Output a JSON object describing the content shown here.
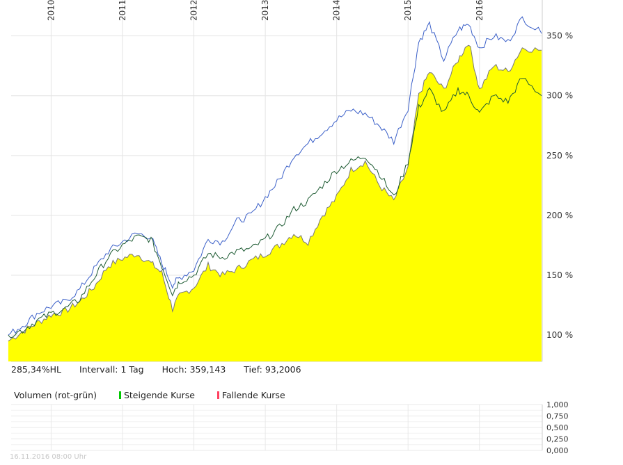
{
  "chart_data": {
    "type": "line",
    "x_axis": {
      "labels": [
        "2010",
        "2011",
        "2012",
        "2013",
        "2014",
        "2015",
        "2016"
      ]
    },
    "y_axis": {
      "ticks": [
        "350 %",
        "300 %",
        "250 %",
        "200 %",
        "150 %",
        "100 %"
      ],
      "ticks_values": [
        350,
        300,
        250,
        200,
        150,
        100
      ],
      "range": [
        78,
        380
      ]
    },
    "series": [
      {
        "color": "#3a5fc8",
        "x": [
          2009.4,
          2009.6,
          2009.8,
          2010.0,
          2010.2,
          2010.4,
          2010.6,
          2010.8,
          2011.0,
          2011.2,
          2011.4,
          2011.55,
          2011.7,
          2011.8,
          2012.0,
          2012.2,
          2012.4,
          2012.6,
          2012.8,
          2013.0,
          2013.2,
          2013.4,
          2013.6,
          2013.8,
          2014.0,
          2014.2,
          2014.4,
          2014.6,
          2014.8,
          2015.0,
          2015.15,
          2015.3,
          2015.5,
          2015.7,
          2015.85,
          2016.0,
          2016.2,
          2016.4,
          2016.6,
          2016.87
        ],
        "values": [
          100,
          108,
          118,
          124,
          128,
          138,
          155,
          170,
          178,
          185,
          182,
          160,
          142,
          148,
          155,
          180,
          178,
          195,
          200,
          215,
          230,
          250,
          260,
          270,
          280,
          288,
          285,
          275,
          262,
          290,
          345,
          360,
          330,
          355,
          360,
          340,
          350,
          345,
          365,
          352
        ]
      },
      {
        "color": "#1e5b33",
        "x": [
          2009.4,
          2009.6,
          2009.8,
          2010.0,
          2010.2,
          2010.4,
          2010.6,
          2010.8,
          2011.0,
          2011.2,
          2011.4,
          2011.55,
          2011.7,
          2011.8,
          2012.0,
          2012.2,
          2012.4,
          2012.6,
          2012.8,
          2013.0,
          2013.2,
          2013.4,
          2013.6,
          2013.8,
          2014.0,
          2014.2,
          2014.4,
          2014.6,
          2014.8,
          2015.0,
          2015.15,
          2015.3,
          2015.5,
          2015.7,
          2015.85,
          2016.0,
          2016.2,
          2016.4,
          2016.6,
          2016.87
        ],
        "values": [
          100,
          104,
          112,
          118,
          122,
          130,
          148,
          165,
          175,
          182,
          180,
          158,
          135,
          145,
          150,
          168,
          165,
          170,
          172,
          180,
          190,
          205,
          212,
          225,
          238,
          245,
          250,
          235,
          215,
          245,
          290,
          305,
          285,
          305,
          300,
          285,
          300,
          295,
          315,
          300
        ]
      },
      {
        "color": "#777777",
        "fill": "#ffff00",
        "x": [
          2009.4,
          2009.6,
          2009.8,
          2010.0,
          2010.2,
          2010.4,
          2010.6,
          2010.8,
          2011.0,
          2011.2,
          2011.4,
          2011.55,
          2011.7,
          2011.8,
          2012.0,
          2012.2,
          2012.4,
          2012.6,
          2012.8,
          2013.0,
          2013.2,
          2013.4,
          2013.6,
          2013.8,
          2014.0,
          2014.2,
          2014.4,
          2014.6,
          2014.8,
          2015.0,
          2015.15,
          2015.3,
          2015.5,
          2015.7,
          2015.85,
          2016.0,
          2016.2,
          2016.4,
          2016.6,
          2016.87
        ],
        "values": [
          95,
          103,
          110,
          117,
          120,
          128,
          140,
          158,
          164,
          168,
          160,
          152,
          122,
          133,
          140,
          158,
          150,
          155,
          162,
          168,
          175,
          185,
          178,
          200,
          215,
          238,
          245,
          225,
          212,
          240,
          300,
          320,
          305,
          330,
          345,
          305,
          325,
          320,
          340,
          338
        ]
      }
    ],
    "grid": true
  },
  "info": {
    "perf": "285,34%HL",
    "interval": "Intervall: 1 Tag",
    "high": "Hoch:  359,143",
    "low": "Tief: 93,2006"
  },
  "volume": {
    "title": "Volumen (rot-grün)",
    "rising": "Steigende Kurse",
    "falling": "Fallende Kurse",
    "rising_color": "#00c800",
    "falling_color": "#ff4060",
    "ticks": [
      "1,000",
      "0,750",
      "0,500",
      "0,250",
      "0,000"
    ]
  },
  "timestamp": "16.11.2016 08:00 Uhr"
}
